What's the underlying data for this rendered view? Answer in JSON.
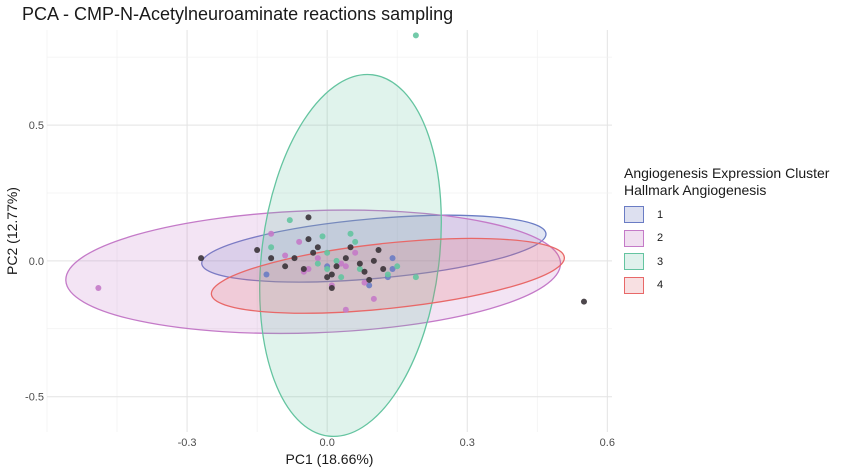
{
  "chart_data": {
    "type": "scatter",
    "title": "PCA - CMP-N-Acetylneuroaminate reactions sampling",
    "xlabel": "PC1 (18.66%)",
    "ylabel": "PC2 (12.77%)",
    "xlim": [
      -0.6,
      0.61
    ],
    "ylim": [
      -0.63,
      0.85
    ],
    "x_ticks": [
      -0.3,
      0.0,
      0.3,
      0.6
    ],
    "x_tick_labels": [
      "-0.3",
      "0.0",
      "0.3",
      "0.6"
    ],
    "y_ticks": [
      -0.5,
      0.0,
      0.5
    ],
    "y_tick_labels": [
      "-0.5",
      "0.0",
      "0.5"
    ],
    "grid": true,
    "legend": {
      "title_line1": "Angiogenesis Expression Cluster",
      "title_line2": "Hallmark Angiogenesis",
      "position": "right"
    },
    "series": [
      {
        "name": "1",
        "color": "#6a7cc4",
        "fill": "#dde0f0",
        "ellipse": {
          "cx": 0.1,
          "cy": 0.045,
          "rx": 0.37,
          "ry": 0.11,
          "angle": -5.0
        },
        "points": [
          [
            0.13,
            -0.06
          ],
          [
            0.14,
            0.01
          ],
          [
            -0.13,
            -0.05
          ],
          [
            0.09,
            -0.09
          ],
          [
            0.0,
            -0.02
          ],
          [
            0.14,
            -0.03
          ]
        ]
      },
      {
        "name": "2",
        "color": "#c47ac8",
        "fill": "#f0dff0",
        "ellipse": {
          "cx": -0.03,
          "cy": -0.04,
          "rx": 0.53,
          "ry": 0.225,
          "angle": -2.0
        },
        "points": [
          [
            -0.49,
            -0.1
          ],
          [
            -0.12,
            0.1
          ],
          [
            -0.06,
            0.07
          ],
          [
            -0.05,
            -0.04
          ],
          [
            0.04,
            -0.02
          ],
          [
            -0.02,
            0.01
          ],
          [
            0.08,
            -0.08
          ],
          [
            0.1,
            -0.14
          ],
          [
            -0.09,
            0.02
          ],
          [
            0.06,
            0.03
          ],
          [
            0.03,
            -0.01
          ],
          [
            -0.04,
            -0.03
          ],
          [
            0.01,
            -0.09
          ],
          [
            0.04,
            -0.18
          ]
        ]
      },
      {
        "name": "3",
        "color": "#64c4a0",
        "fill": "#dff1ec",
        "ellipse": {
          "cx": 0.05,
          "cy": 0.02,
          "rx": 0.19,
          "ry": 0.67,
          "angle": 7.0
        },
        "points": [
          [
            0.19,
            0.83
          ],
          [
            -0.08,
            0.15
          ],
          [
            -0.12,
            0.05
          ],
          [
            -0.01,
            0.09
          ],
          [
            0.05,
            0.1
          ],
          [
            0.02,
            0.0
          ],
          [
            0.0,
            -0.03
          ],
          [
            0.07,
            -0.03
          ],
          [
            0.13,
            -0.05
          ],
          [
            0.19,
            -0.06
          ],
          [
            0.06,
            0.07
          ],
          [
            0.0,
            0.03
          ],
          [
            -0.02,
            -0.01
          ],
          [
            0.03,
            -0.06
          ],
          [
            0.15,
            -0.02
          ]
        ]
      },
      {
        "name": "4",
        "color": "#e86868",
        "fill": "#f8e0e2",
        "ellipse": {
          "cx": 0.13,
          "cy": -0.055,
          "rx": 0.38,
          "ry": 0.12,
          "angle": -6.0
        },
        "points": []
      },
      {
        "name": "",
        "color": "#3a3338",
        "fill": "none",
        "points": [
          [
            0.55,
            -0.15
          ],
          [
            -0.27,
            0.01
          ],
          [
            -0.04,
            0.16
          ],
          [
            -0.15,
            0.04
          ],
          [
            -0.12,
            0.01
          ],
          [
            -0.09,
            -0.02
          ],
          [
            -0.07,
            0.01
          ],
          [
            -0.04,
            0.08
          ],
          [
            -0.02,
            0.05
          ],
          [
            0.01,
            -0.05
          ],
          [
            0.02,
            -0.02
          ],
          [
            0.05,
            0.05
          ],
          [
            0.07,
            -0.01
          ],
          [
            0.08,
            -0.04
          ],
          [
            0.1,
            0.0
          ],
          [
            0.12,
            -0.03
          ],
          [
            0.04,
            0.01
          ],
          [
            -0.05,
            -0.03
          ],
          [
            -0.03,
            0.03
          ],
          [
            0.0,
            -0.06
          ],
          [
            0.11,
            0.04
          ],
          [
            0.09,
            -0.07
          ],
          [
            0.01,
            -0.1
          ]
        ]
      }
    ]
  }
}
